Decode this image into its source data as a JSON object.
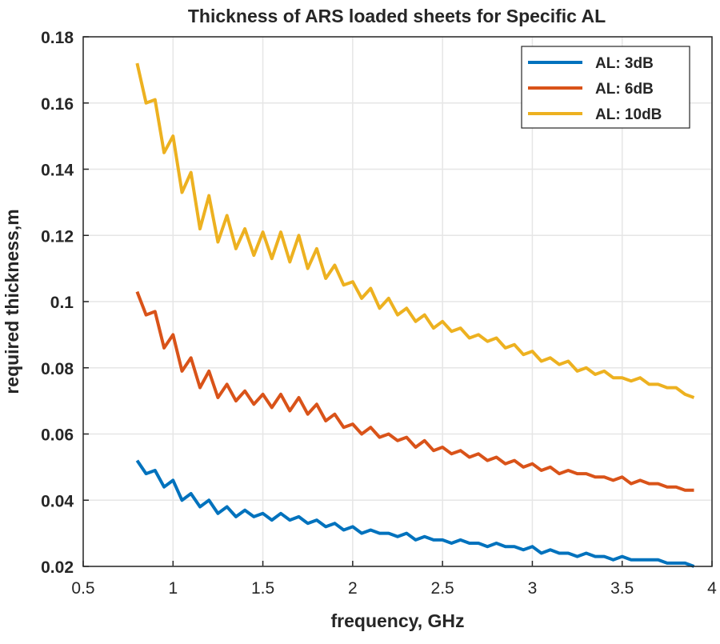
{
  "chart_data": {
    "type": "line",
    "title": "Thickness of ARS loaded sheets for Specific AL",
    "xlabel": "frequency, GHz",
    "ylabel": "required thickness,m",
    "xlim": [
      0.5,
      4
    ],
    "ylim": [
      0.02,
      0.18
    ],
    "xticks": [
      0.5,
      1,
      1.5,
      2,
      2.5,
      3,
      3.5,
      4
    ],
    "xtick_labels": [
      "0.5",
      "1",
      "1.5",
      "2",
      "2.5",
      "3",
      "3.5",
      "4"
    ],
    "yticks": [
      0.02,
      0.04,
      0.06,
      0.08,
      0.1,
      0.12,
      0.14,
      0.16,
      0.18
    ],
    "ytick_labels": [
      "0.02",
      "0.04",
      "0.06",
      "0.08",
      "0.1",
      "0.12",
      "0.14",
      "0.16",
      "0.18"
    ],
    "grid": true,
    "legend_position": "top-right",
    "x": [
      0.8,
      0.85,
      0.9,
      0.95,
      1.0,
      1.05,
      1.1,
      1.15,
      1.2,
      1.25,
      1.3,
      1.35,
      1.4,
      1.45,
      1.5,
      1.55,
      1.6,
      1.65,
      1.7,
      1.75,
      1.8,
      1.85,
      1.9,
      1.95,
      2.0,
      2.05,
      2.1,
      2.15,
      2.2,
      2.25,
      2.3,
      2.35,
      2.4,
      2.45,
      2.5,
      2.55,
      2.6,
      2.65,
      2.7,
      2.75,
      2.8,
      2.85,
      2.9,
      2.95,
      3.0,
      3.05,
      3.1,
      3.15,
      3.2,
      3.25,
      3.3,
      3.35,
      3.4,
      3.45,
      3.5,
      3.55,
      3.6,
      3.65,
      3.7,
      3.75,
      3.8,
      3.85,
      3.9
    ],
    "series": [
      {
        "name": "AL: 3dB",
        "color": "#0072BD",
        "values": [
          0.052,
          0.048,
          0.049,
          0.044,
          0.046,
          0.04,
          0.042,
          0.038,
          0.04,
          0.036,
          0.038,
          0.035,
          0.037,
          0.035,
          0.036,
          0.034,
          0.036,
          0.034,
          0.035,
          0.033,
          0.034,
          0.032,
          0.033,
          0.031,
          0.032,
          0.03,
          0.031,
          0.03,
          0.03,
          0.029,
          0.03,
          0.028,
          0.029,
          0.028,
          0.028,
          0.027,
          0.028,
          0.027,
          0.027,
          0.026,
          0.027,
          0.026,
          0.026,
          0.025,
          0.026,
          0.024,
          0.025,
          0.024,
          0.024,
          0.023,
          0.024,
          0.023,
          0.023,
          0.022,
          0.023,
          0.022,
          0.022,
          0.022,
          0.022,
          0.021,
          0.021,
          0.021,
          0.02
        ]
      },
      {
        "name": "AL: 6dB",
        "color": "#D95319",
        "values": [
          0.103,
          0.096,
          0.097,
          0.086,
          0.09,
          0.079,
          0.083,
          0.074,
          0.079,
          0.071,
          0.075,
          0.07,
          0.073,
          0.069,
          0.072,
          0.068,
          0.072,
          0.067,
          0.071,
          0.066,
          0.069,
          0.064,
          0.066,
          0.062,
          0.063,
          0.06,
          0.062,
          0.059,
          0.06,
          0.058,
          0.059,
          0.056,
          0.058,
          0.055,
          0.056,
          0.054,
          0.055,
          0.053,
          0.054,
          0.052,
          0.053,
          0.051,
          0.052,
          0.05,
          0.051,
          0.049,
          0.05,
          0.048,
          0.049,
          0.048,
          0.048,
          0.047,
          0.047,
          0.046,
          0.047,
          0.045,
          0.046,
          0.045,
          0.045,
          0.044,
          0.044,
          0.043,
          0.043
        ]
      },
      {
        "name": "AL: 10dB",
        "color": "#EDB120",
        "values": [
          0.172,
          0.16,
          0.161,
          0.145,
          0.15,
          0.133,
          0.139,
          0.122,
          0.132,
          0.118,
          0.126,
          0.116,
          0.122,
          0.114,
          0.121,
          0.113,
          0.121,
          0.112,
          0.12,
          0.11,
          0.116,
          0.107,
          0.111,
          0.105,
          0.106,
          0.101,
          0.104,
          0.098,
          0.101,
          0.096,
          0.098,
          0.094,
          0.096,
          0.092,
          0.094,
          0.091,
          0.092,
          0.089,
          0.09,
          0.088,
          0.089,
          0.086,
          0.087,
          0.084,
          0.085,
          0.082,
          0.083,
          0.081,
          0.082,
          0.079,
          0.08,
          0.078,
          0.079,
          0.077,
          0.077,
          0.076,
          0.077,
          0.075,
          0.075,
          0.074,
          0.074,
          0.072,
          0.071
        ]
      }
    ]
  }
}
